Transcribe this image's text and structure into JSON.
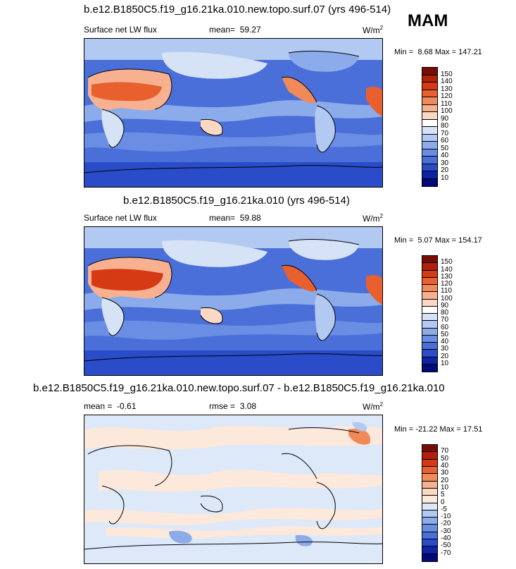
{
  "season": "MAM",
  "panels": [
    {
      "title": "b.e12.B1850C5.f19_g16.21ka.010.new.topo.surf.07 (yrs 496-514)",
      "left_label": "Surface net LW flux",
      "stat_label": "mean=",
      "stat_value": "59.27",
      "units": "W/m",
      "units_sup": "2",
      "min_label": "Min =",
      "min_value": "8.68",
      "max_label": "Max =",
      "max_value": "147.21",
      "levels": [
        "150",
        "140",
        "130",
        "120",
        "110",
        "100",
        "90",
        "80",
        "70",
        "60",
        "50",
        "40",
        "30",
        "20",
        "10"
      ]
    },
    {
      "title": "b.e12.B1850C5.f19_g16.21ka.010 (yrs 496-514)",
      "left_label": "Surface net LW flux",
      "stat_label": "mean=",
      "stat_value": "59.88",
      "units": "W/m",
      "units_sup": "2",
      "min_label": "Min =",
      "min_value": "5.07",
      "max_label": "Max =",
      "max_value": "154.17",
      "levels": [
        "150",
        "140",
        "130",
        "120",
        "110",
        "100",
        "90",
        "80",
        "70",
        "60",
        "50",
        "40",
        "30",
        "20",
        "10"
      ]
    },
    {
      "title": "b.e12.B1850C5.f19_g16.21ka.010.new.topo.surf.07 - b.e12.B1850C5.f19_g16.21ka.010",
      "left_label": "mean =",
      "left_value": "-0.61",
      "stat_label": "rmse =",
      "stat_value": "3.08",
      "units": "W/m",
      "units_sup": "2",
      "min_label": "Min =",
      "min_value": "-21.22",
      "max_label": "Max =",
      "max_value": "17.51",
      "levels": [
        "70",
        "50",
        "40",
        "30",
        "20",
        "10",
        "5",
        "0",
        "-5",
        "-10",
        "-20",
        "-30",
        "-40",
        "-50",
        "-70"
      ]
    }
  ],
  "colors": {
    "abs_palette": [
      "#7a0c05",
      "#b3200a",
      "#d63a14",
      "#e8602e",
      "#f08a5a",
      "#f7b190",
      "#fbd8c4",
      "#ffffff",
      "#d6e3f7",
      "#b2c9f1",
      "#8cabeb",
      "#6a8ee3",
      "#4a6fd9",
      "#2a4cc8",
      "#0e24a6",
      "#000a78"
    ],
    "diff_palette": [
      "#7a0c05",
      "#b3200a",
      "#d63a14",
      "#e8602e",
      "#f08a5a",
      "#f7b190",
      "#fbd8c4",
      "#fde9dc",
      "#dde8f8",
      "#b2c9f1",
      "#8cabeb",
      "#6a8ee3",
      "#4a6fd9",
      "#2a4cc8",
      "#0e24a6",
      "#000a78"
    ]
  },
  "chart_data": [
    {
      "type": "heatmap",
      "title": "b.e12.B1850C5.f19_g16.21ka.010.new.topo.surf.07 (yrs 496-514)",
      "variable": "Surface net LW flux",
      "units": "W/m2",
      "mean": 59.27,
      "min": 8.68,
      "max": 147.21,
      "contour_levels": [
        10,
        20,
        30,
        40,
        50,
        60,
        70,
        80,
        90,
        100,
        110,
        120,
        130,
        140,
        150
      ]
    },
    {
      "type": "heatmap",
      "title": "b.e12.B1850C5.f19_g16.21ka.010 (yrs 496-514)",
      "variable": "Surface net LW flux",
      "units": "W/m2",
      "mean": 59.88,
      "min": 5.07,
      "max": 154.17,
      "contour_levels": [
        10,
        20,
        30,
        40,
        50,
        60,
        70,
        80,
        90,
        100,
        110,
        120,
        130,
        140,
        150
      ]
    },
    {
      "type": "heatmap",
      "title": "b.e12.B1850C5.f19_g16.21ka.010.new.topo.surf.07 - b.e12.B1850C5.f19_g16.21ka.010",
      "units": "W/m2",
      "mean": -0.61,
      "rmse": 3.08,
      "min": -21.22,
      "max": 17.51,
      "contour_levels": [
        -70,
        -50,
        -40,
        -30,
        -20,
        -10,
        -5,
        0,
        5,
        10,
        20,
        30,
        40,
        50,
        70
      ]
    }
  ]
}
